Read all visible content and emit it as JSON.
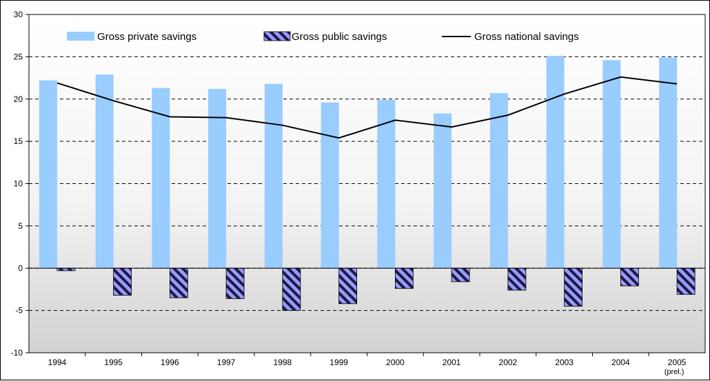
{
  "chart_data": {
    "type": "bar",
    "categories": [
      "1994",
      "1995",
      "1996",
      "1997",
      "1998",
      "1999",
      "2000",
      "2001",
      "2002",
      "2003",
      "2004",
      "2005"
    ],
    "category_sublabels": [
      "",
      "",
      "",
      "",
      "",
      "",
      "",
      "",
      "",
      "",
      "",
      "(prel.)"
    ],
    "series": [
      {
        "name": "Gross private savings",
        "kind": "bar",
        "color": "#99ccff",
        "values": [
          22.2,
          22.9,
          21.3,
          21.2,
          21.8,
          19.6,
          19.9,
          18.3,
          20.7,
          25.1,
          24.6,
          24.9
        ]
      },
      {
        "name": "Gross public savings",
        "kind": "bar",
        "pattern": "diagonal-hatch",
        "color": "#9999ff",
        "values": [
          -0.3,
          -3.2,
          -3.5,
          -3.6,
          -5.0,
          -4.2,
          -2.4,
          -1.6,
          -2.6,
          -4.5,
          -2.1,
          -3.1
        ]
      },
      {
        "name": "Gross national savings",
        "kind": "line",
        "color": "#000000",
        "values": [
          21.9,
          19.8,
          17.9,
          17.8,
          16.9,
          15.4,
          17.5,
          16.7,
          18.1,
          20.6,
          22.6,
          21.8
        ]
      }
    ],
    "ylim": [
      -10,
      30
    ],
    "yticks": [
      -10,
      -5,
      0,
      5,
      10,
      15,
      20,
      25,
      30
    ],
    "grid": "dashed horizontal",
    "legend_position": "top",
    "plot_background": "gradient white to gray",
    "title": "",
    "xlabel": "",
    "ylabel": ""
  }
}
